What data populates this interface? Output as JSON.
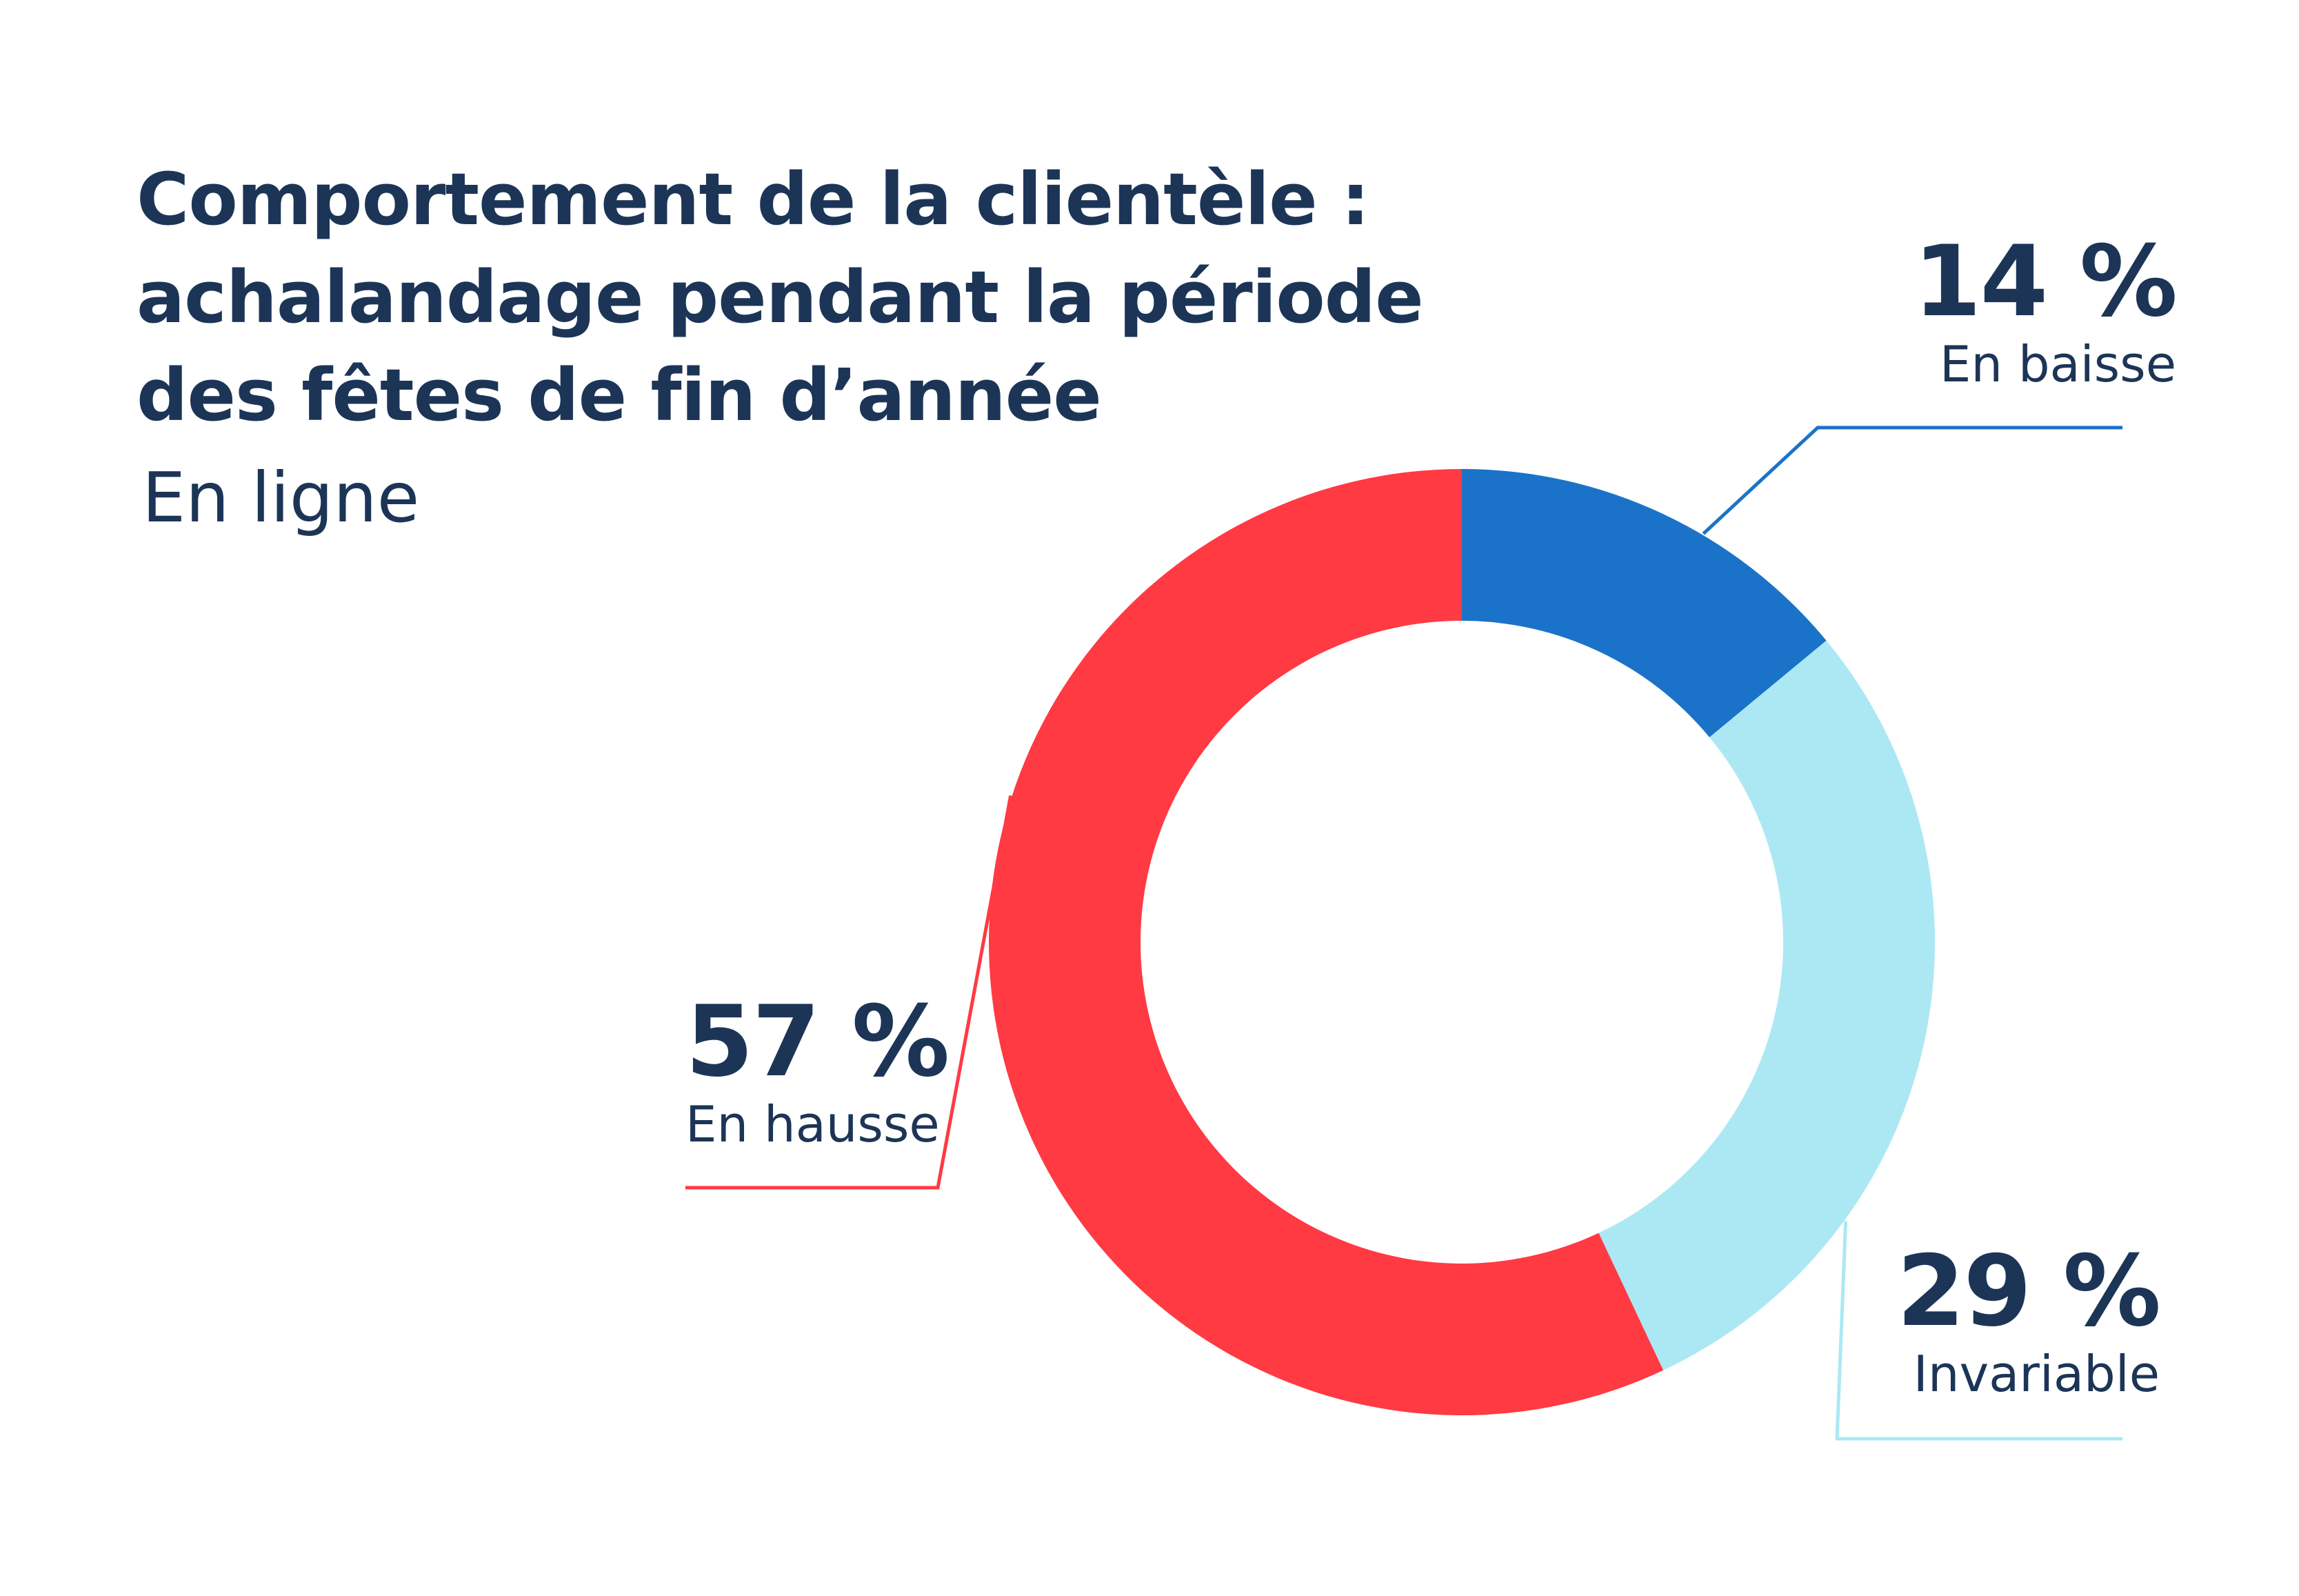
{
  "title_lines": [
    "Comportement de la clientèle :",
    "achalandage pendant la période",
    "des fêtes de fin d’année"
  ],
  "subtitle": "En ligne",
  "chart_data": {
    "type": "pie",
    "donut": true,
    "title": "Comportement de la clientèle : achalandage pendant la période des fêtes de fin d’année",
    "subtitle": "En ligne",
    "categories": [
      "En baisse",
      "Invariable",
      "En hausse"
    ],
    "values": [
      14,
      29,
      57
    ],
    "value_labels": [
      "14 %",
      "29 %",
      "57 %"
    ],
    "colors": [
      "#1a73c8",
      "#abe8f4",
      "#ff3a43"
    ],
    "start_angle": "12 o'clock",
    "direction": "clockwise",
    "legend": "callouts"
  },
  "colors": {
    "text": "#1c3557",
    "background": "#ffffff"
  }
}
